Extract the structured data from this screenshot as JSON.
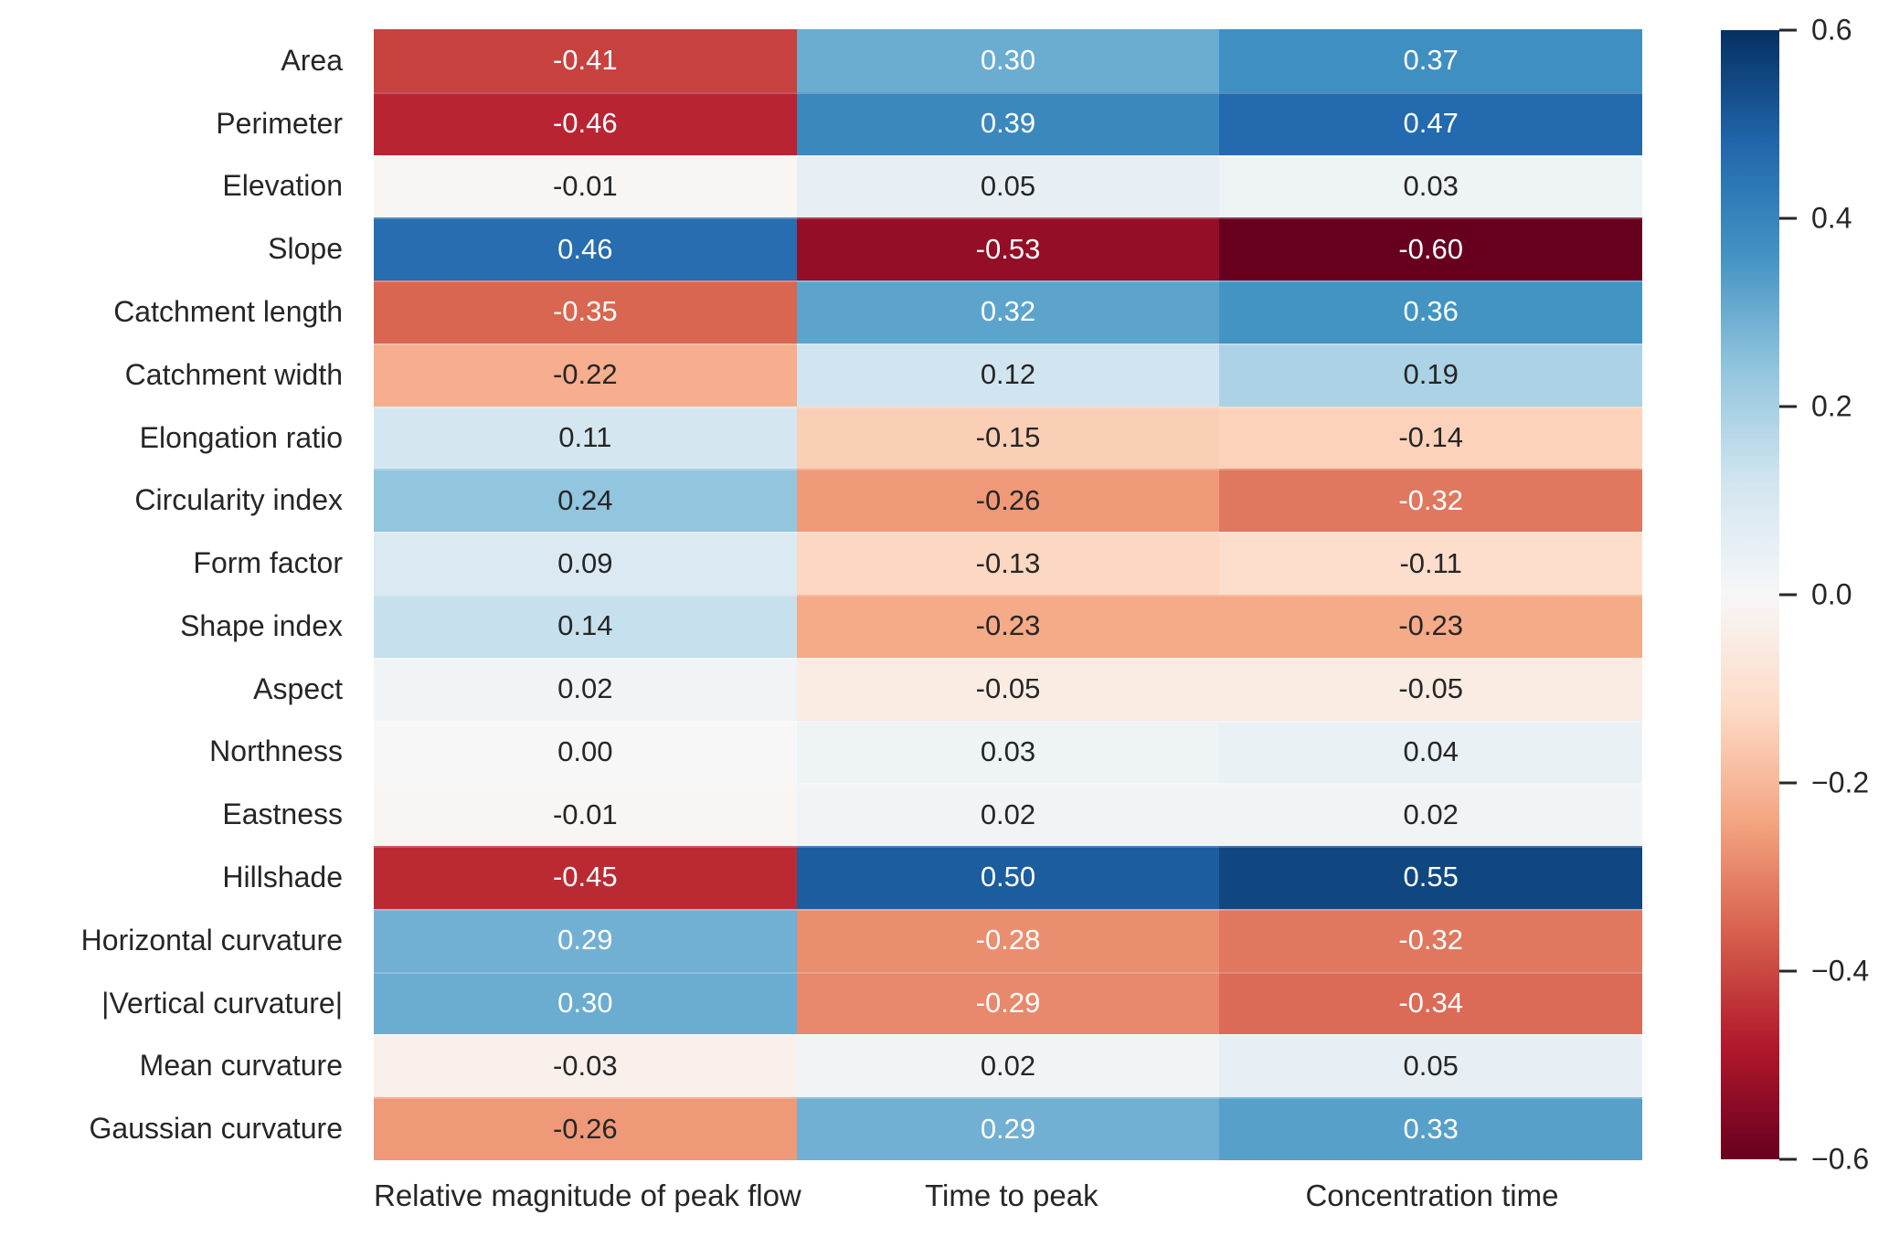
{
  "figure": {
    "background": "#ffffff",
    "text_color": "#262626",
    "annot_light_color": "#ffffff"
  },
  "chart_data": {
    "type": "heatmap",
    "title": "",
    "columns": [
      "Relative magnitude of peak flow",
      "Time to peak",
      "Concentration time"
    ],
    "rows": [
      "Area",
      "Perimeter",
      "Elevation",
      "Slope",
      "Catchment length",
      "Catchment width",
      "Elongation ratio",
      "Circularity index",
      "Form factor",
      "Shape index",
      "Aspect",
      "Northness",
      "Eastness",
      "Hillshade",
      "Horizontal curvature",
      "|Vertical curvature|",
      "Mean curvature",
      "Gaussian curvature"
    ],
    "values": [
      [
        -0.41,
        0.3,
        0.37
      ],
      [
        -0.46,
        0.39,
        0.47
      ],
      [
        -0.01,
        0.05,
        0.03
      ],
      [
        0.46,
        -0.53,
        -0.6
      ],
      [
        -0.35,
        0.32,
        0.36
      ],
      [
        -0.22,
        0.12,
        0.19
      ],
      [
        0.11,
        -0.15,
        -0.14
      ],
      [
        0.24,
        -0.26,
        -0.32
      ],
      [
        0.09,
        -0.13,
        -0.11
      ],
      [
        0.14,
        -0.23,
        -0.23
      ],
      [
        0.02,
        -0.05,
        -0.05
      ],
      [
        0.0,
        0.03,
        0.04
      ],
      [
        -0.01,
        0.02,
        0.02
      ],
      [
        -0.45,
        0.5,
        0.55
      ],
      [
        0.29,
        -0.28,
        -0.32
      ],
      [
        0.3,
        -0.29,
        -0.34
      ],
      [
        -0.03,
        0.02,
        0.05
      ],
      [
        -0.26,
        0.29,
        0.33
      ]
    ],
    "vmin": -0.6,
    "vmax": 0.6,
    "colormap": "RdBu",
    "colormap_stops": [
      "#67001f",
      "#b2182b",
      "#d6604d",
      "#f4a582",
      "#fddbc7",
      "#f7f7f7",
      "#d1e5f0",
      "#92c5de",
      "#4393c3",
      "#2166ac",
      "#053061"
    ],
    "colorbar": {
      "position": "right",
      "ticks": [
        0.6,
        0.4,
        0.2,
        0.0,
        -0.2,
        -0.4,
        -0.6
      ],
      "tick_labels": [
        "0.6",
        "0.4",
        "0.2",
        "0.0",
        "−0.2",
        "−0.4",
        "−0.6"
      ]
    },
    "grid": false,
    "legend": false,
    "xlabel": "",
    "ylabel": ""
  }
}
